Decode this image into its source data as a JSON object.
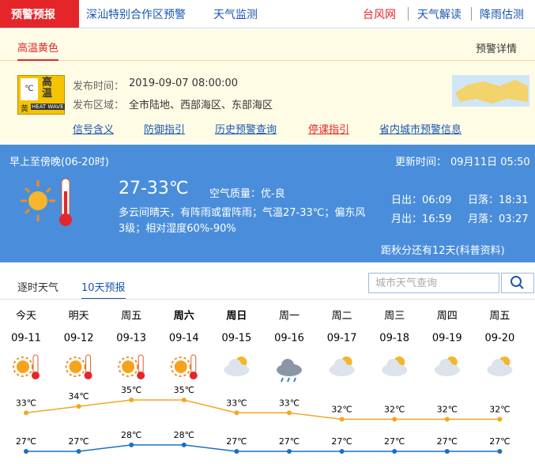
{
  "nav": {
    "left": [
      "预警预报",
      "深汕特别合作区预警",
      "天气监测"
    ],
    "right": [
      "台风网",
      "天气解读",
      "降雨估测"
    ]
  },
  "warning": {
    "tab": "高温黄色",
    "detail": "预警详情",
    "icon": {
      "title": "高温",
      "unit": "℃",
      "level": "黄",
      "en": "HEAT WAVE"
    },
    "time_label": "发布时间：",
    "time": "2019-09-07 08:00:00",
    "area_label": "发布区域：",
    "area": "全市陆地、西部海区、东部海区",
    "links": [
      "信号含义",
      "防御指引",
      "历史预警查询",
      "停课指引",
      "省内城市预警信息"
    ]
  },
  "today": {
    "period": "早上至傍晚(06-20时)",
    "update_label": "更新时间：",
    "update": "09月11日 05:50",
    "temp": "27-33℃",
    "air": "空气质量：优-良",
    "desc": [
      "多云间晴天，有阵雨或雷阵雨；气温27-33℃；偏东风",
      "3级；相对湿度60%-90%"
    ],
    "sun": [
      "日出：06:09",
      "日落：18:31",
      "月出：16:59",
      "月落：03:27"
    ],
    "countdown": "距秋分还有12天(科普资料)"
  },
  "tabs": [
    "逐时天气",
    "10天预报"
  ],
  "search": "城市天气查询",
  "forecast": {
    "days": [
      "今天",
      "明天",
      "周五",
      "周六",
      "周日",
      "周一",
      "周二",
      "周三",
      "周四",
      "周五"
    ],
    "dates": [
      "09-11",
      "09-12",
      "09-13",
      "09-14",
      "09-15",
      "09-16",
      "09-17",
      "09-18",
      "09-19",
      "09-20"
    ],
    "high": {
      "color": "#f5a623",
      "values": [
        33,
        34,
        35,
        35,
        33,
        33,
        32,
        32,
        32,
        32
      ],
      "value_labels": [
        "33℃",
        "34℃",
        "35℃",
        "35℃",
        "33℃",
        "33℃",
        "32℃",
        "32℃",
        "32℃",
        "32℃"
      ]
    },
    "low": {
      "color": "#1a6fc4",
      "values": [
        27,
        27,
        28,
        28,
        27,
        27,
        27,
        27,
        27,
        27
      ],
      "value_labels": [
        "27℃",
        "27℃",
        "28℃",
        "28℃",
        "27℃",
        "27℃",
        "27℃",
        "27℃",
        "27℃",
        "27℃"
      ]
    }
  }
}
